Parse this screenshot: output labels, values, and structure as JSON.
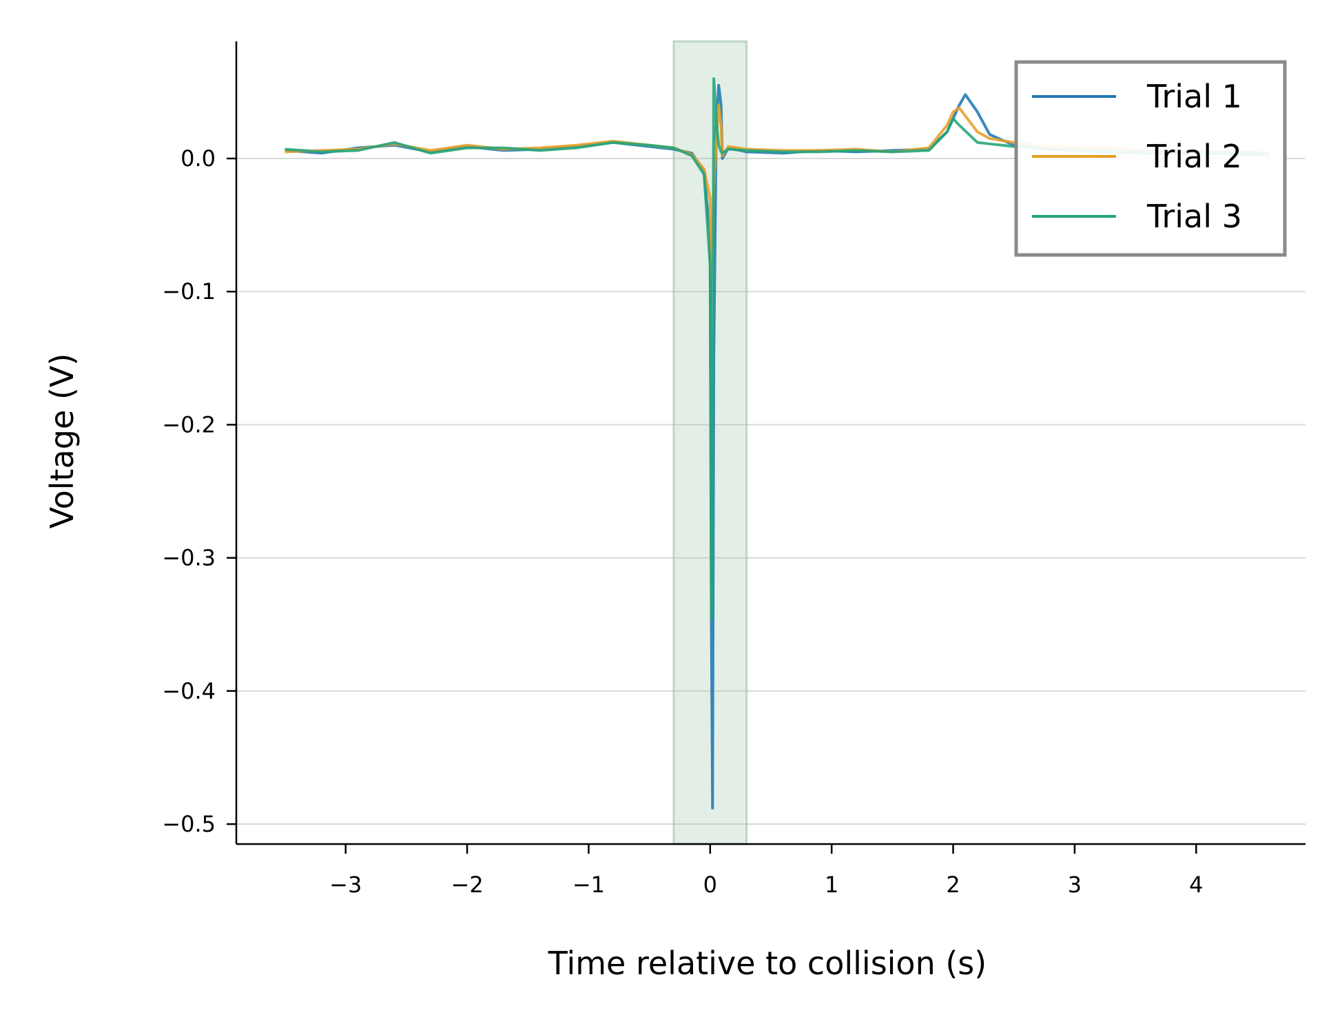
{
  "chart_data": {
    "type": "line",
    "title": "",
    "xlabel": "Time relative to collision (s)",
    "ylabel": "Voltage (V)",
    "xlim": [
      -3.9,
      4.9
    ],
    "ylim": [
      -0.515,
      0.088
    ],
    "xticks": [
      -3,
      -2,
      -1,
      0,
      1,
      2,
      3,
      4
    ],
    "xtick_labels": [
      "−3",
      "−2",
      "−1",
      "0",
      "1",
      "2",
      "3",
      "4"
    ],
    "yticks": [
      0.0,
      -0.1,
      -0.2,
      -0.3,
      -0.4,
      -0.5
    ],
    "ytick_labels": [
      "0.0",
      "−0.1",
      "−0.2",
      "−0.3",
      "−0.4",
      "−0.5"
    ],
    "grid": "horizontal",
    "legend": "top-right",
    "shaded_region": {
      "x": [
        -0.3,
        0.3
      ],
      "color": "#9cc2a6"
    },
    "series": [
      {
        "name": "Trial 1",
        "color": "#1f77b4",
        "x": [
          -3.5,
          -3.2,
          -2.9,
          -2.6,
          -2.3,
          -2.0,
          -1.7,
          -1.4,
          -1.1,
          -0.8,
          -0.5,
          -0.3,
          -0.15,
          -0.05,
          0.0,
          0.01,
          0.02,
          0.03,
          0.05,
          0.07,
          0.09,
          0.1,
          0.15,
          0.3,
          0.6,
          0.9,
          1.2,
          1.5,
          1.8,
          1.95,
          2.05,
          2.1,
          2.2,
          2.3,
          2.5,
          2.8,
          3.2,
          3.6,
          4.0,
          4.4,
          4.6
        ],
        "y": [
          0.006,
          0.004,
          0.008,
          0.01,
          0.005,
          0.009,
          0.006,
          0.007,
          0.009,
          0.012,
          0.009,
          0.007,
          0.004,
          -0.01,
          -0.06,
          -0.35,
          -0.488,
          -0.15,
          0.02,
          0.055,
          0.04,
          0.0,
          0.008,
          0.005,
          0.004,
          0.006,
          0.005,
          0.006,
          0.007,
          0.02,
          0.04,
          0.048,
          0.035,
          0.018,
          0.01,
          0.007,
          0.005,
          0.004,
          0.004,
          0.003,
          0.003
        ]
      },
      {
        "name": "Trial 2",
        "color": "#e69f26",
        "x": [
          -3.5,
          -3.2,
          -2.9,
          -2.6,
          -2.3,
          -2.0,
          -1.7,
          -1.4,
          -1.1,
          -0.8,
          -0.5,
          -0.3,
          -0.15,
          -0.05,
          0.0,
          0.01,
          0.02,
          0.03,
          0.05,
          0.07,
          0.09,
          0.1,
          0.15,
          0.3,
          0.6,
          0.9,
          1.2,
          1.5,
          1.8,
          1.95,
          2.0,
          2.05,
          2.2,
          2.3,
          2.5,
          2.8,
          3.2,
          3.6,
          4.0,
          4.4,
          4.6
        ],
        "y": [
          0.005,
          0.006,
          0.007,
          0.011,
          0.006,
          0.01,
          0.007,
          0.008,
          0.01,
          0.013,
          0.01,
          0.008,
          0.003,
          -0.008,
          -0.03,
          -0.09,
          -0.06,
          -0.02,
          0.01,
          0.04,
          0.025,
          0.002,
          0.009,
          0.007,
          0.006,
          0.006,
          0.007,
          0.005,
          0.008,
          0.025,
          0.035,
          0.038,
          0.02,
          0.015,
          0.012,
          0.009,
          0.008,
          0.006,
          0.005,
          0.005,
          0.004
        ]
      },
      {
        "name": "Trial 3",
        "color": "#23a57a",
        "x": [
          -3.5,
          -3.2,
          -2.9,
          -2.6,
          -2.3,
          -2.0,
          -1.7,
          -1.4,
          -1.1,
          -0.8,
          -0.5,
          -0.3,
          -0.15,
          -0.05,
          0.0,
          0.01,
          0.02,
          0.03,
          0.05,
          0.07,
          0.09,
          0.1,
          0.15,
          0.3,
          0.6,
          0.9,
          1.2,
          1.5,
          1.8,
          1.95,
          2.0,
          2.05,
          2.2,
          2.3,
          2.5,
          2.8,
          3.2,
          3.6,
          4.0,
          4.4,
          4.6
        ],
        "y": [
          0.007,
          0.005,
          0.006,
          0.012,
          0.004,
          0.008,
          0.008,
          0.006,
          0.008,
          0.012,
          0.01,
          0.008,
          0.002,
          -0.012,
          -0.08,
          -0.345,
          -0.2,
          0.06,
          0.03,
          0.01,
          0.005,
          0.004,
          0.007,
          0.006,
          0.005,
          0.005,
          0.006,
          0.005,
          0.006,
          0.02,
          0.03,
          0.025,
          0.012,
          0.011,
          0.009,
          0.007,
          0.006,
          0.005,
          0.005,
          0.004,
          0.004
        ]
      }
    ]
  }
}
